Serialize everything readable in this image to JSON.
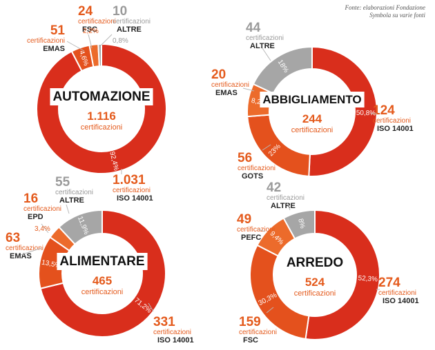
{
  "source_note": "Fonte: elaborazioni Fondazione Symbola su varie fonti",
  "colors": {
    "red": "#d92e1c",
    "orange": "#e4511d",
    "orange_light": "#ec6b2b",
    "grey": "#a6a6a6",
    "label_grey": "#9a9a9a",
    "center_orange": "#e45a1c",
    "dark": "#222222"
  },
  "chart_data": [
    {
      "type": "pie",
      "id": "automazione",
      "title": "AUTOMAZIONE",
      "total": "1.116",
      "total_unit": "certificazioni",
      "slices": [
        {
          "name": "ISO 14001",
          "count": "1.031",
          "unit": "certificazioni",
          "pct_label": "92,4%",
          "value": 92.4,
          "color": "red"
        },
        {
          "name": "EMAS",
          "count": "51",
          "unit": "certificazioni",
          "pct_label": "4,6%",
          "value": 4.6,
          "color": "orange"
        },
        {
          "name": "FSC",
          "count": "24",
          "unit": "certificazioni",
          "pct_label": "2,2%",
          "value": 2.2,
          "color": "orange_light"
        },
        {
          "name": "ALTRE",
          "count": "10",
          "unit": "certificazioni",
          "pct_label": "0,8%",
          "value": 0.8,
          "color": "grey"
        }
      ]
    },
    {
      "type": "pie",
      "id": "abbigliamento",
      "title": "ABBIGLIAMENTO",
      "total": "244",
      "total_unit": "certificazioni",
      "slices": [
        {
          "name": "ISO 14001",
          "count": "124",
          "unit": "certificazioni",
          "pct_label": "50,8%",
          "value": 50.8,
          "color": "red"
        },
        {
          "name": "GOTS",
          "count": "56",
          "unit": "certificazioni",
          "pct_label": "23%",
          "value": 23.0,
          "color": "orange"
        },
        {
          "name": "EMAS",
          "count": "20",
          "unit": "certificazioni",
          "pct_label": "8,2%",
          "value": 8.2,
          "color": "orange_light"
        },
        {
          "name": "ALTRE",
          "count": "44",
          "unit": "certificazioni",
          "pct_label": "18%",
          "value": 18.0,
          "color": "grey"
        }
      ]
    },
    {
      "type": "pie",
      "id": "alimentare",
      "title": "ALIMENTARE",
      "total": "465",
      "total_unit": "certificazioni",
      "slices": [
        {
          "name": "ISO 14001",
          "count": "331",
          "unit": "certificazioni",
          "pct_label": "71,2%",
          "value": 71.2,
          "color": "red"
        },
        {
          "name": "EMAS",
          "count": "63",
          "unit": "certificazioni",
          "pct_label": "13,5%",
          "value": 13.5,
          "color": "orange"
        },
        {
          "name": "EPD",
          "count": "16",
          "unit": "certificazioni",
          "pct_label": "3,4%",
          "value": 3.4,
          "color": "orange_light"
        },
        {
          "name": "ALTRE",
          "count": "55",
          "unit": "certificazioni",
          "pct_label": "11,9%",
          "value": 11.9,
          "color": "grey"
        }
      ]
    },
    {
      "type": "pie",
      "id": "arredo",
      "title": "ARREDO",
      "total": "524",
      "total_unit": "certificazioni",
      "slices": [
        {
          "name": "ISO 14001",
          "count": "274",
          "unit": "certificazioni",
          "pct_label": "52,3%",
          "value": 52.3,
          "color": "red"
        },
        {
          "name": "FSC",
          "count": "159",
          "unit": "certificazioni",
          "pct_label": "30,3%",
          "value": 30.3,
          "color": "orange"
        },
        {
          "name": "PEFC",
          "count": "49",
          "unit": "certificazioni",
          "pct_label": "9,4%",
          "value": 9.4,
          "color": "orange_light"
        },
        {
          "name": "ALTRE",
          "count": "42",
          "unit": "certificazioni",
          "pct_label": "8%",
          "value": 8.0,
          "color": "grey"
        }
      ]
    }
  ]
}
